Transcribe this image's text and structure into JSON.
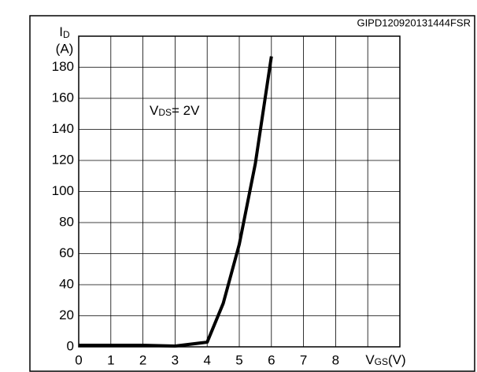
{
  "chart_data": {
    "type": "line",
    "code": "GIPD120920131444FSR",
    "y_label": {
      "main": "I",
      "sub": "D",
      "unit": "(A)"
    },
    "x_label": {
      "main": "V",
      "sub": "GS",
      "rest": "(V)"
    },
    "annotation": {
      "main": "V",
      "sub": "DS",
      "rest": "= 2V"
    },
    "x": [
      0,
      1,
      2,
      3,
      4,
      4.5,
      5,
      5.5,
      6
    ],
    "series": [
      {
        "name": null,
        "color": "#000000",
        "values": [
          1,
          1,
          1,
          0.5,
          3,
          28,
          66,
          118,
          187
        ]
      }
    ],
    "xlim": [
      0,
      10
    ],
    "ylim": [
      0,
      200
    ],
    "xticks": [
      0,
      1,
      2,
      3,
      4,
      5,
      6,
      7,
      8
    ],
    "yticks": [
      0,
      20,
      40,
      60,
      80,
      100,
      120,
      140,
      160,
      180
    ],
    "xgrid": [
      1,
      2,
      3,
      4,
      5,
      6,
      7,
      8,
      9
    ],
    "ygrid": [
      20,
      40,
      60,
      80,
      100,
      120,
      140,
      160,
      180
    ],
    "grid": true
  }
}
